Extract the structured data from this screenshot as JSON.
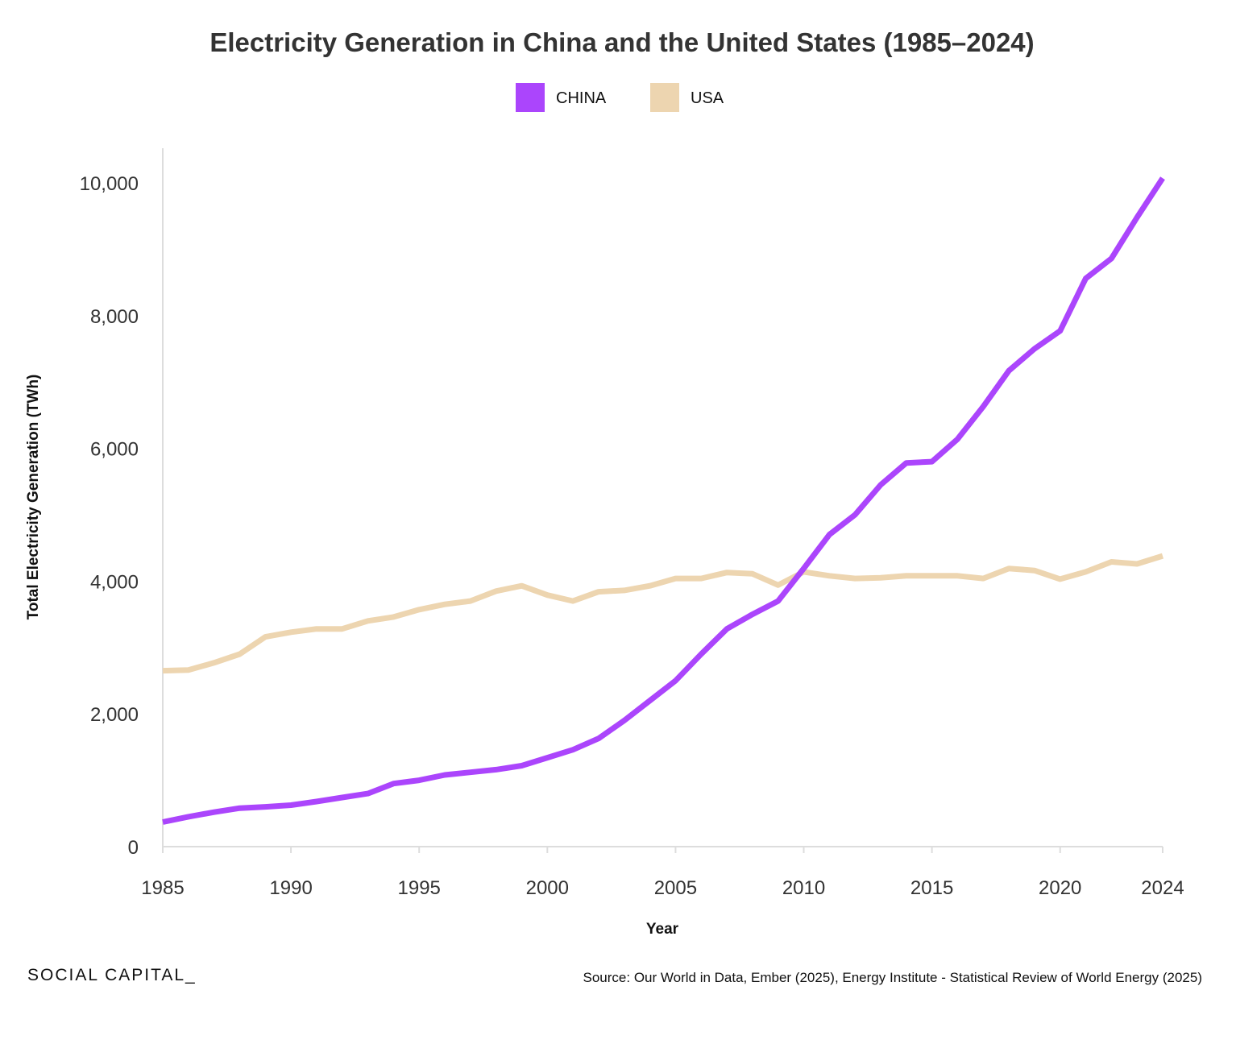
{
  "brand": "SOCIAL CAPITAL_",
  "source": "Source: Our World in Data, Ember (2025), Energy Institute - Statistical Review of World Energy (2025)",
  "chart_data": {
    "type": "line",
    "title": "Electricity Generation in China and the United States (1985–2024)",
    "xlabel": "Year",
    "ylabel": "Total Electricity Generation (TWh)",
    "xlim": [
      1985,
      2024
    ],
    "ylim": [
      0,
      10500
    ],
    "grid": false,
    "legend_position": "top-center",
    "x_ticks": [
      1985,
      1990,
      1995,
      2000,
      2005,
      2010,
      2015,
      2020,
      2024
    ],
    "y_ticks": [
      0,
      2000,
      4000,
      6000,
      8000,
      10000
    ],
    "y_tick_labels": [
      "0",
      "2,000",
      "4,000",
      "6,000",
      "8,000",
      "10,000"
    ],
    "x": [
      1985,
      1986,
      1987,
      1988,
      1989,
      1990,
      1991,
      1992,
      1993,
      1994,
      1995,
      1996,
      1997,
      1998,
      1999,
      2000,
      2001,
      2002,
      2003,
      2004,
      2005,
      2006,
      2007,
      2008,
      2009,
      2010,
      2011,
      2012,
      2013,
      2014,
      2015,
      2016,
      2017,
      2018,
      2019,
      2020,
      2021,
      2022,
      2023,
      2024
    ],
    "series": [
      {
        "name": "CHINA",
        "color": "#ab45fc",
        "values": [
          370,
          450,
          520,
          580,
          600,
          625,
          680,
          740,
          800,
          950,
          1000,
          1080,
          1120,
          1160,
          1220,
          1340,
          1460,
          1630,
          1900,
          2200,
          2500,
          2900,
          3280,
          3500,
          3700,
          4190,
          4700,
          5000,
          5450,
          5780,
          5800,
          6140,
          6630,
          7170,
          7500,
          7770,
          8560,
          8860,
          9480,
          10070
        ]
      },
      {
        "name": "USA",
        "color": "#edd5b0",
        "values": [
          2650,
          2660,
          2770,
          2900,
          3160,
          3230,
          3280,
          3280,
          3400,
          3460,
          3570,
          3650,
          3700,
          3850,
          3930,
          3790,
          3700,
          3840,
          3860,
          3930,
          4040,
          4040,
          4130,
          4110,
          3940,
          4140,
          4080,
          4040,
          4050,
          4080,
          4080,
          4080,
          4040,
          4190,
          4160,
          4030,
          4140,
          4290,
          4260,
          4380
        ]
      }
    ]
  }
}
